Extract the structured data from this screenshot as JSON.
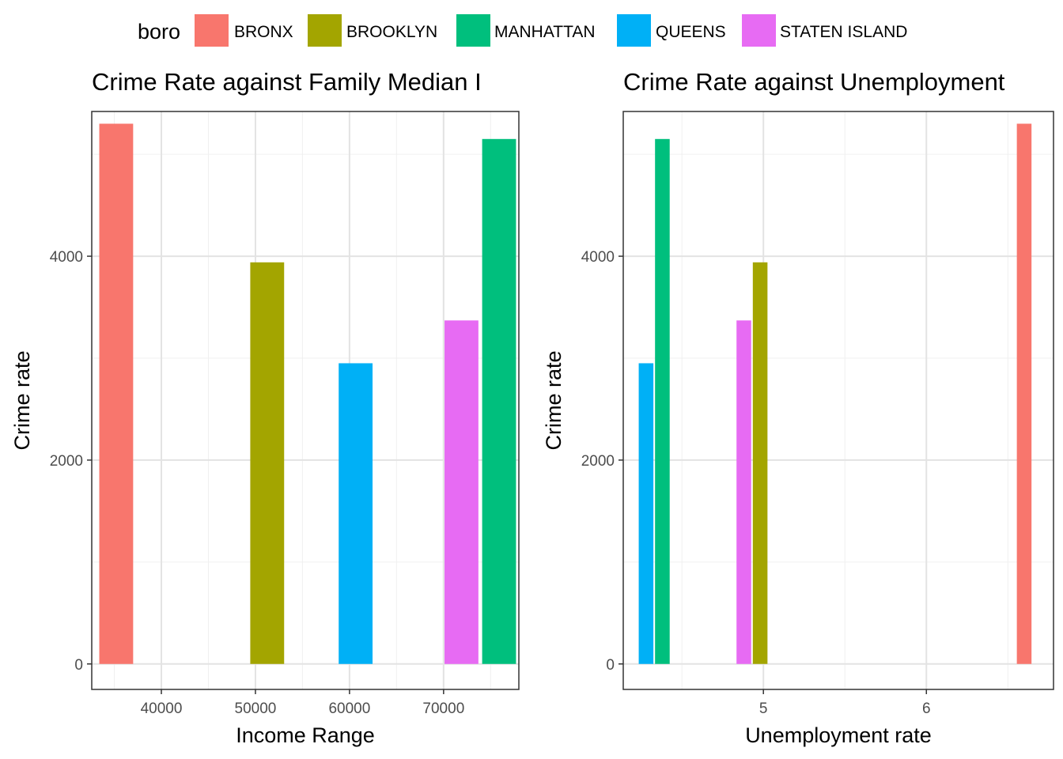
{
  "legend": {
    "title": "boro",
    "items": [
      {
        "label": "BRONX",
        "color": "#F8766D"
      },
      {
        "label": "BROOKLYN",
        "color": "#A3A500"
      },
      {
        "label": "MANHATTAN",
        "color": "#00BF7D"
      },
      {
        "label": "QUEENS",
        "color": "#00B0F6"
      },
      {
        "label": "STATEN ISLAND",
        "color": "#E76BF3"
      }
    ]
  },
  "chart_data": [
    {
      "type": "bar",
      "title": "Crime Rate against Family Median I",
      "xlabel": "Income Range",
      "ylabel": "Crime rate",
      "xlim": [
        32600,
        78000
      ],
      "ylim": [
        -250,
        5420
      ],
      "xticks": [
        40000,
        50000,
        60000,
        70000
      ],
      "xtick_labels": [
        "40000",
        "50000",
        "60000",
        "70000"
      ],
      "yticks": [
        0,
        2000,
        4000
      ],
      "ytick_labels": [
        "0",
        "2000",
        "4000"
      ],
      "grid": true,
      "bar_width": 3600,
      "bars": [
        {
          "series": "BRONX",
          "x": 35200,
          "value": 5300,
          "color": "#F8766D"
        },
        {
          "series": "BROOKLYN",
          "x": 51250,
          "value": 3940,
          "color": "#A3A500"
        },
        {
          "series": "QUEENS",
          "x": 60650,
          "value": 2950,
          "color": "#00B0F6"
        },
        {
          "series": "STATEN ISLAND",
          "x": 71900,
          "value": 3370,
          "color": "#E76BF3"
        },
        {
          "series": "MANHATTAN",
          "x": 75900,
          "value": 5150,
          "color": "#00BF7D"
        }
      ]
    },
    {
      "type": "bar",
      "title": "Crime Rate against Unemployment",
      "xlabel": "Unemployment rate",
      "ylabel": "Crime rate",
      "xlim": [
        4.14,
        6.78
      ],
      "ylim": [
        -250,
        5420
      ],
      "xticks": [
        5,
        6
      ],
      "xtick_labels": [
        "5",
        "6"
      ],
      "yticks": [
        0,
        2000,
        4000
      ],
      "ytick_labels": [
        "0",
        "2000",
        "4000"
      ],
      "grid": true,
      "bar_width": 0.09,
      "bars": [
        {
          "series": "QUEENS",
          "x": 4.28,
          "value": 2950,
          "color": "#00B0F6"
        },
        {
          "series": "MANHATTAN",
          "x": 4.38,
          "value": 5150,
          "color": "#00BF7D"
        },
        {
          "series": "STATEN ISLAND",
          "x": 4.88,
          "value": 3370,
          "color": "#E76BF3"
        },
        {
          "series": "BROOKLYN",
          "x": 4.98,
          "value": 3940,
          "color": "#A3A500"
        },
        {
          "series": "BRONX",
          "x": 6.6,
          "value": 5300,
          "color": "#F8766D"
        }
      ]
    }
  ]
}
